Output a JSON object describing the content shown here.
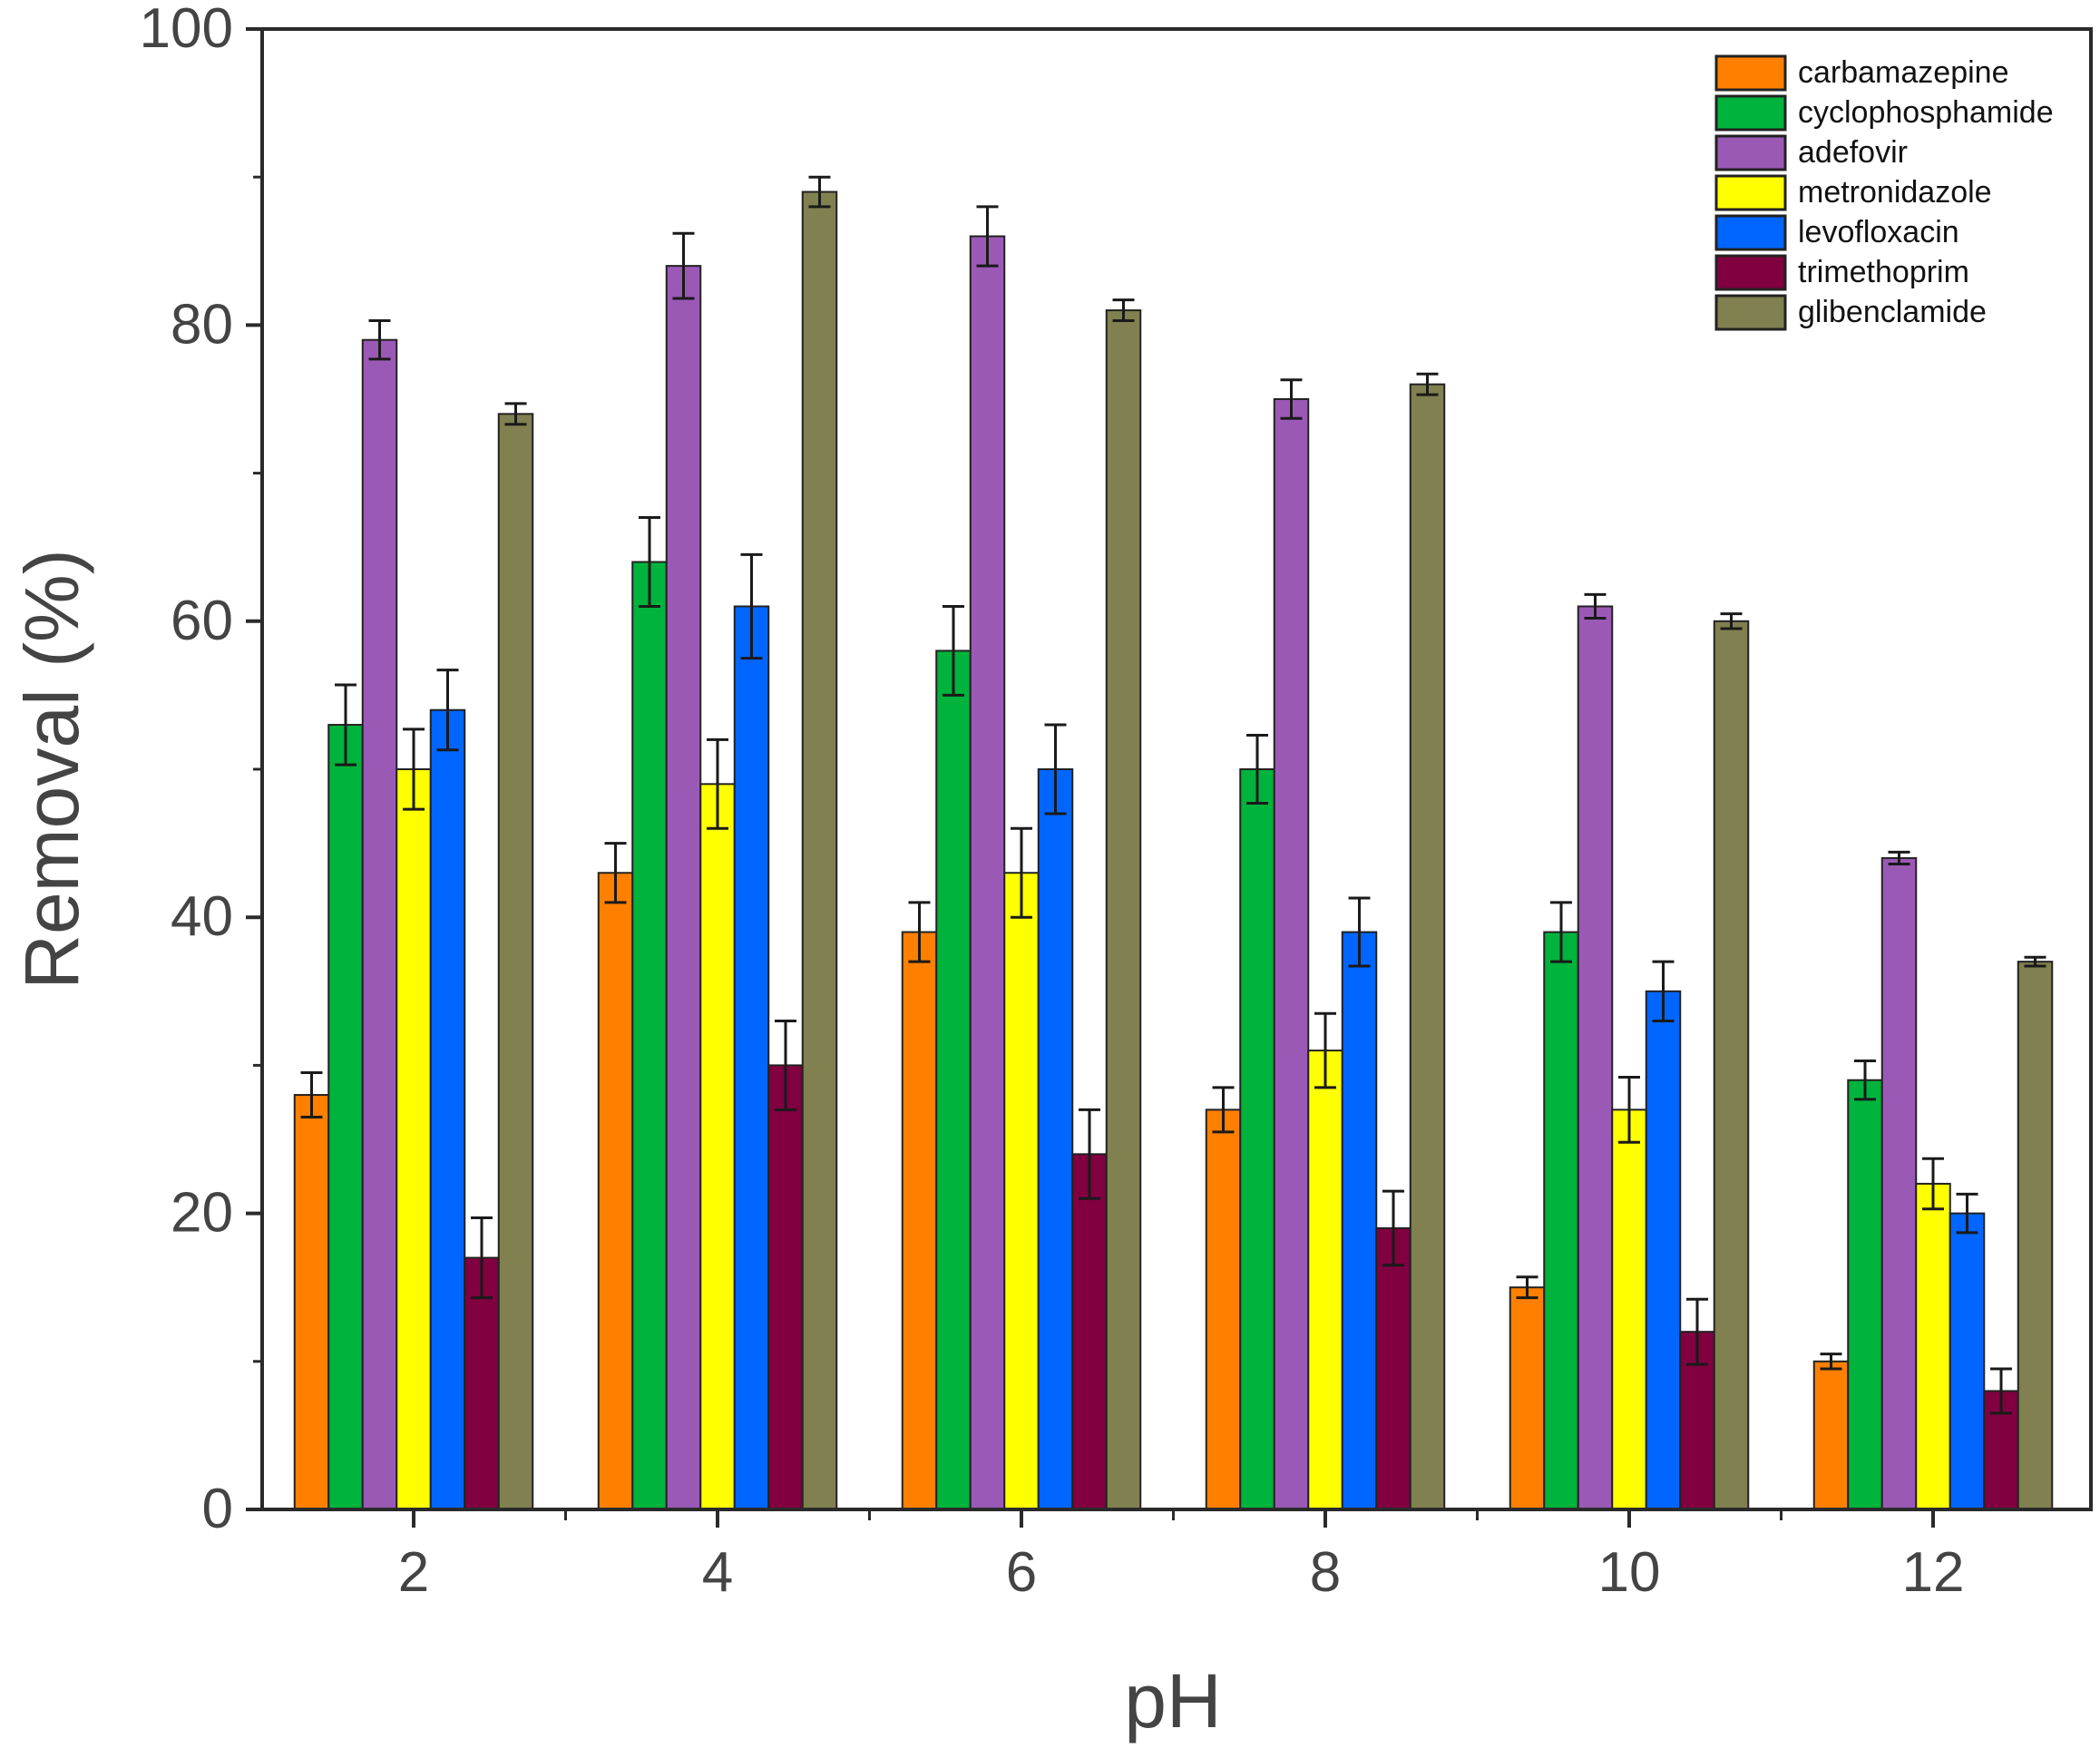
{
  "chart_data": {
    "type": "bar",
    "title": "",
    "xlabel": "pH",
    "ylabel": "Removal (%)",
    "categories": [
      "2",
      "4",
      "6",
      "8",
      "10",
      "12"
    ],
    "ylim": [
      0,
      100
    ],
    "yticks": [
      "0",
      "20",
      "40",
      "60",
      "80",
      "100"
    ],
    "grid": false,
    "legend_position": "top-right",
    "series": [
      {
        "name": "carbamazepine",
        "color": "#FF8000",
        "values": [
          28,
          43,
          39,
          27,
          15,
          10
        ],
        "errors": [
          1.5,
          2,
          2,
          1.5,
          0.7,
          0.5
        ]
      },
      {
        "name": "cyclophosphamide",
        "color": "#00B33C",
        "values": [
          53,
          64,
          58,
          50,
          39,
          29
        ],
        "errors": [
          2.7,
          3,
          3,
          2.3,
          2,
          1.3
        ]
      },
      {
        "name": "adefovir",
        "color": "#9B59B6",
        "values": [
          79,
          84,
          86,
          75,
          61,
          44
        ],
        "errors": [
          1.3,
          2.2,
          2,
          1.3,
          0.8,
          0.4
        ]
      },
      {
        "name": "metronidazole",
        "color": "#FFFF00",
        "values": [
          50,
          49,
          43,
          31,
          27,
          22
        ],
        "errors": [
          2.7,
          3,
          3,
          2.5,
          2.2,
          1.7
        ]
      },
      {
        "name": "levofloxacin",
        "color": "#0066FF",
        "values": [
          54,
          61,
          50,
          39,
          35,
          20
        ],
        "errors": [
          2.7,
          3.5,
          3,
          2.3,
          2,
          1.3
        ]
      },
      {
        "name": "trimethoprim",
        "color": "#800040",
        "values": [
          17,
          30,
          24,
          19,
          12,
          8
        ],
        "errors": [
          2.7,
          3,
          3,
          2.5,
          2.2,
          1.5
        ]
      },
      {
        "name": "glibenclamide",
        "color": "#808050",
        "values": [
          74,
          89,
          81,
          76,
          60,
          37
        ],
        "errors": [
          0.7,
          1,
          0.7,
          0.7,
          0.5,
          0.3
        ]
      }
    ]
  }
}
